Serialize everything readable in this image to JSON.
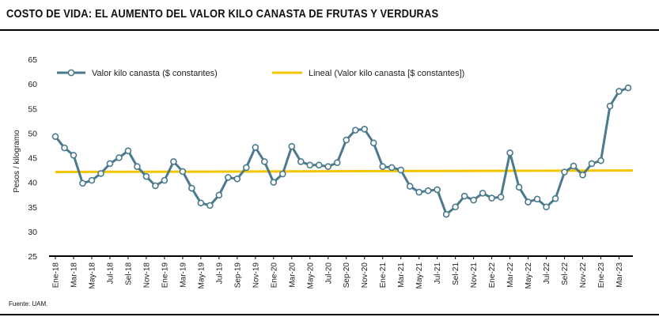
{
  "title": "COSTO DE VIDA: EL AUMENTO DEL VALOR KILO CANASTA DE FRUTAS Y VERDURAS",
  "source": "Fuente: UAM.",
  "colors": {
    "series": "#4a7a8c",
    "trend": "#f2c500",
    "axis": "#000000"
  },
  "chart_data": {
    "type": "line",
    "title": "",
    "xlabel": "",
    "ylabel": "Pesos / kilogramo",
    "ylim": [
      25,
      65
    ],
    "yticks": [
      25,
      30,
      35,
      40,
      45,
      50,
      55,
      60,
      65
    ],
    "grid": false,
    "legend_position": "top",
    "x_tick_labels": [
      "Ene-18",
      "Mar-18",
      "May-18",
      "Jul-18",
      "Sel-18",
      "Nov-18",
      "Ene-19",
      "Mar-19",
      "May-19",
      "Jul-19",
      "Sep-19",
      "Nov-19",
      "Ene-20",
      "Mar-20",
      "May-20",
      "Jul-20",
      "Sep-20",
      "Nov-20",
      "Ene-21",
      "Mar-21",
      "May-21",
      "Jul-21",
      "Sel-21",
      "Nov-21",
      "Ene-22",
      "Mar-22",
      "May-22",
      "Jul-22",
      "Sel-22",
      "Nov-22",
      "Ene-23",
      "Mar-23"
    ],
    "series": [
      {
        "name": "Valor kilo canasta ($ constantes)",
        "values": [
          49.3,
          47.0,
          45.5,
          39.8,
          40.4,
          41.8,
          43.8,
          45.0,
          46.4,
          43.2,
          41.2,
          39.3,
          40.4,
          44.2,
          42.2,
          38.8,
          35.8,
          35.3,
          37.4,
          41.0,
          40.7,
          43.0,
          47.1,
          44.2,
          40.0,
          41.7,
          47.3,
          44.2,
          43.5,
          43.5,
          43.2,
          44.0,
          48.6,
          50.6,
          50.8,
          48.0,
          43.2,
          43.0,
          42.5,
          39.2,
          38.0,
          38.3,
          38.5,
          33.5,
          35.0,
          37.2,
          36.4,
          37.8,
          36.8,
          37.0,
          46.0,
          39.0,
          36.0,
          36.6,
          35.0,
          36.7,
          42.1,
          43.3,
          41.5,
          43.8,
          44.4,
          55.5,
          58.5,
          59.2
        ]
      },
      {
        "name": "Lineal (Valor kilo canasta [$ constantes])",
        "values": [
          42.1,
          42.4
        ]
      }
    ]
  }
}
